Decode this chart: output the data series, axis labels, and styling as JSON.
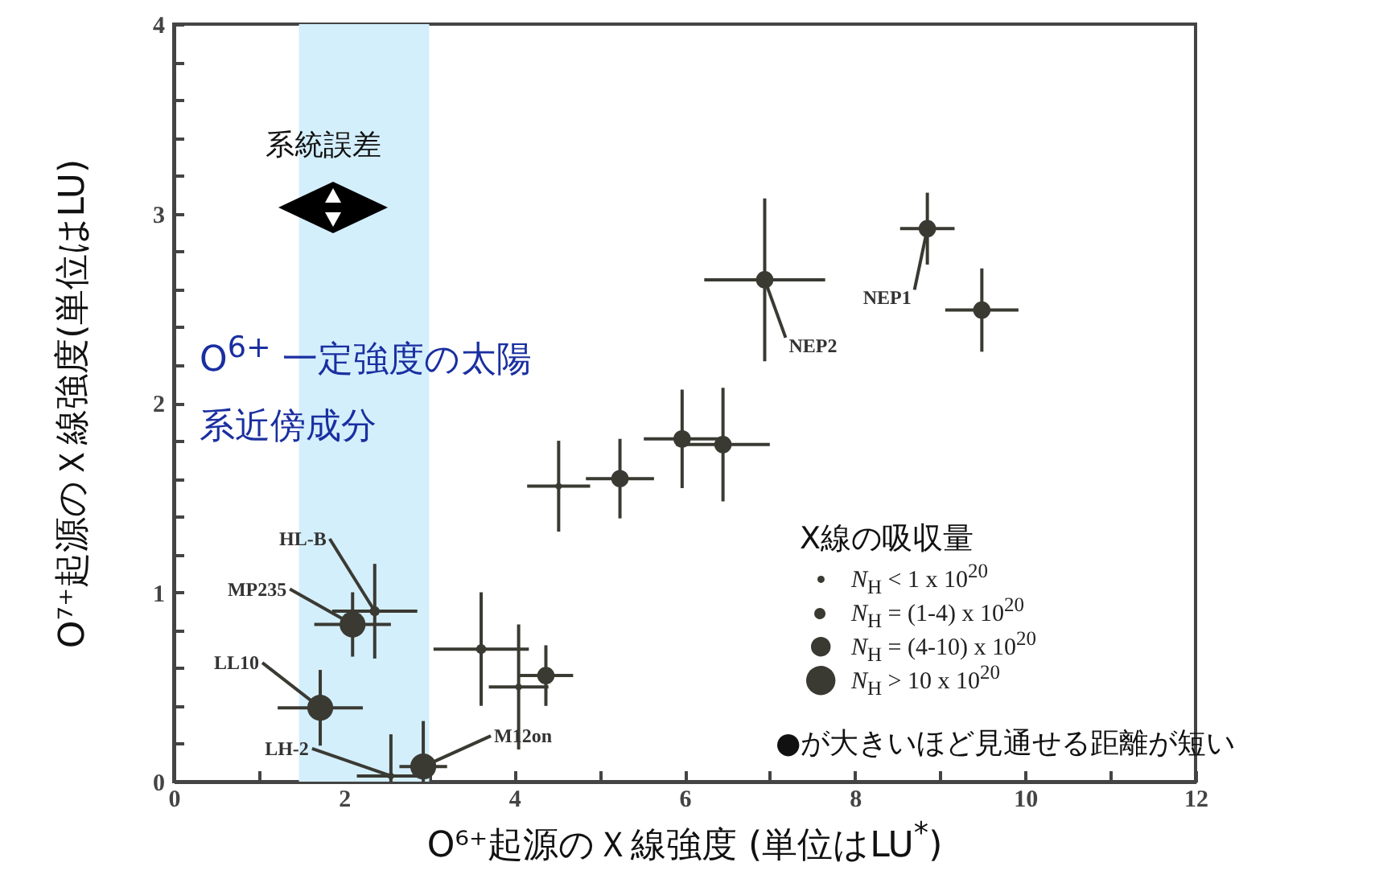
{
  "chart_data": {
    "type": "bubble",
    "xlabel": "O⁶⁺起源のＸ線強度 (単位はLU$^{*}$)",
    "ylabel": "O⁷⁺起源のＸ線強度(単位はLU)",
    "legend_title": "X線の吸収量",
    "legend": "bottom right",
    "marker": "circle",
    "xlim": [
      0,
      12
    ],
    "ylim": [
      0,
      4
    ],
    "xticks": [
      0,
      {
        "value": 1,
        "label": null
      },
      2,
      {
        "value": 3,
        "label": null
      },
      4,
      {
        "value": 5,
        "label": null
      },
      6,
      {
        "value": 7,
        "label": null
      },
      8,
      {
        "value": 9,
        "label": null
      },
      10,
      {
        "value": 11,
        "label": null
      },
      12
    ],
    "yticks": [
      0,
      {
        "value": 0.2,
        "label": null
      },
      {
        "value": 0.4,
        "label": null
      },
      {
        "value": 0.6,
        "label": null
      },
      {
        "value": 0.8,
        "label": null
      },
      1,
      {
        "value": 1.2,
        "label": null
      },
      {
        "value": 1.4,
        "label": null
      },
      {
        "value": 1.6,
        "label": null
      },
      {
        "value": 1.8,
        "label": null
      },
      2,
      {
        "value": 2.2,
        "label": null
      },
      {
        "value": 2.4,
        "label": null
      },
      {
        "value": 2.6,
        "label": null
      },
      {
        "value": 2.8,
        "label": null
      },
      3,
      {
        "value": 3.2,
        "label": null
      },
      {
        "value": 3.4,
        "label": null
      },
      {
        "value": 3.6,
        "label": null
      },
      {
        "value": 3.8,
        "label": null
      },
      4
    ],
    "bands": [
      {
        "axis": "x",
        "from": 1.47,
        "to": 3.0,
        "color": "#d4effc"
      }
    ],
    "series": [
      {
        "name": "N$_{H}$ < 1 x 10$^{20}$",
        "color": "#3a3a33",
        "x": [
          2.55,
          4.05,
          4.52
        ],
        "values": [
          0.03,
          0.5,
          1.56
        ],
        "sizes": [
          0.06,
          0.06,
          0.06
        ],
        "errors": [
          [
            0,
            0.25
          ],
          0.33,
          0.24
        ],
        "xerrors": [
          0.4,
          0.35,
          0.37
        ]
      },
      {
        "name": "N$_{H}$ = (1-4) x 10$^{20}$",
        "color": "#3a3a33",
        "x": [
          2.36,
          3.61
        ],
        "values": [
          0.9,
          0.7
        ],
        "sizes": [
          0.15,
          0.15
        ],
        "errors": [
          0.25,
          0.3
        ],
        "xerrors": [
          0.5,
          0.56
        ]
      },
      {
        "name": "N$_{H}$ = (4-10) x 10$^{20}$",
        "color": "#3a3a33",
        "x": [
          4.37,
          5.24,
          5.97,
          6.45,
          6.94,
          8.85,
          9.49
        ],
        "values": [
          0.56,
          1.6,
          1.81,
          1.78,
          2.65,
          2.92,
          2.49
        ],
        "sizes": [
          0.45,
          0.45,
          0.45,
          0.45,
          0.45,
          0.45,
          0.45
        ],
        "errors": [
          0.16,
          0.21,
          0.26,
          0.3,
          0.43,
          0.19,
          0.22
        ],
        "xerrors": [
          0.32,
          0.4,
          0.45,
          0.55,
          0.71,
          0.32,
          0.43
        ]
      },
      {
        "name": "N$_{H}$ > 10 x 10$^{20}$",
        "color": "#3a3a33",
        "x": [
          2.1,
          1.72,
          2.93
        ],
        "values": [
          0.83,
          0.39,
          0.08
        ],
        "sizes": [
          1,
          1,
          1
        ],
        "errors": [
          0.17,
          0.2,
          [
            0,
            0.32
          ]
        ],
        "xerrors": [
          0.45,
          0.5,
          0.28
        ]
      }
    ],
    "annotations": [
      "系統誤差",
      "O$^{6+}$ 一定強度の太陽系近傍成分",
      "●が大きいほど見通せる距離が短い",
      {
        "text": "HL-B",
        "x": 2.36,
        "y": 0.9
      },
      {
        "text": "MP235",
        "x": 2.1,
        "y": 0.83
      },
      {
        "text": "LL10",
        "x": 1.72,
        "y": 0.39
      },
      {
        "text": "LH-2",
        "x": 2.55,
        "y": 0.03
      },
      {
        "text": "M12on",
        "x": 2.93,
        "y": 0.08
      },
      {
        "text": "NEP2",
        "x": 6.94,
        "y": 2.65
      },
      {
        "text": "NEP1",
        "x": 8.85,
        "y": 2.92
      }
    ]
  }
}
